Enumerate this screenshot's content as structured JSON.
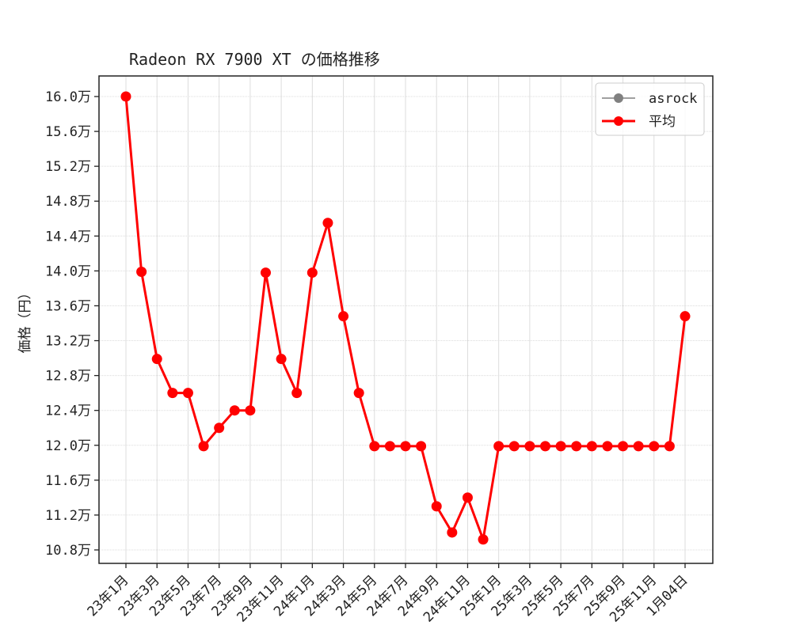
{
  "chart_data": {
    "type": "line",
    "title": "Radeon RX 7900 XT の価格推移",
    "xlabel": "",
    "ylabel": "価格（円）",
    "ylim": [
      106400,
      162500
    ],
    "grid": true,
    "legend_position": "upper right",
    "legend": [
      {
        "name": "asrock",
        "color": "#808080"
      },
      {
        "name": "平均",
        "color": "#ff0000"
      }
    ],
    "y_ticks": [
      108000,
      112000,
      116000,
      120000,
      124000,
      128000,
      132000,
      136000,
      140000,
      144000,
      148000,
      152000,
      156000,
      160000
    ],
    "y_tick_labels": [
      "10.8万",
      "11.2万",
      "11.6万",
      "12.0万",
      "12.4万",
      "12.8万",
      "13.2万",
      "13.6万",
      "14.0万",
      "14.4万",
      "14.8万",
      "15.2万",
      "15.6万",
      "16.0万"
    ],
    "x_tick_labels": [
      "23年1月",
      "23年3月",
      "23年5月",
      "23年7月",
      "23年9月",
      "23年11月",
      "24年1月",
      "24年3月",
      "24年5月",
      "24年7月",
      "24年9月",
      "24年11月",
      "25年1月",
      "25年3月",
      "25年5月",
      "25年7月",
      "25年9月",
      "25年11月",
      "1月04日"
    ],
    "x": [
      "23年1月",
      "23年2月",
      "23年3月",
      "23年4月",
      "23年5月",
      "23年6月",
      "23年7月",
      "23年8月",
      "23年9月",
      "23年10月",
      "23年11月",
      "23年12月",
      "24年1月",
      "24年2月",
      "24年3月",
      "24年4月",
      "24年5月",
      "24年6月",
      "24年7月",
      "24年8月",
      "24年9月",
      "24年10月",
      "24年11月",
      "24年12月",
      "25年1月",
      "25年2月",
      "25年3月",
      "25年4月",
      "25年5月",
      "25年6月",
      "25年7月",
      "25年8月",
      "25年9月",
      "25年10月",
      "25年11月",
      "25年12月",
      "1月04日"
    ],
    "series": [
      {
        "name": "asrock",
        "color": "#808080",
        "values": []
      },
      {
        "name": "平均",
        "color": "#ff0000",
        "values": [
          160000,
          139900,
          129900,
          126000,
          126000,
          119900,
          122000,
          124000,
          124000,
          139800,
          129900,
          126000,
          139800,
          145500,
          134800,
          126000,
          119900,
          119900,
          119900,
          119900,
          113000,
          110000,
          114000,
          109200,
          119900,
          119900,
          119900,
          119900,
          119900,
          119900,
          119900,
          119900,
          119900,
          119900,
          119900,
          119900,
          134800
        ]
      }
    ]
  }
}
